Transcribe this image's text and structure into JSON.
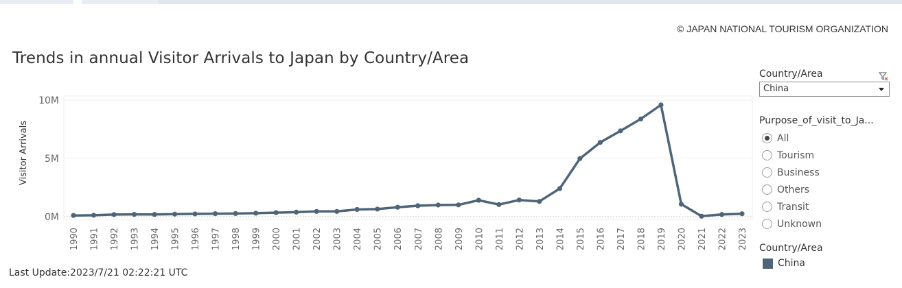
{
  "header": {
    "copyright": "© JAPAN NATIONAL TOURISM ORGANIZATION",
    "title": "Trends in annual Visitor Arrivals to Japan by Country/Area",
    "last_update": "Last Update:2023/7/21 02:22:21 UTC"
  },
  "filters": {
    "country_label": "Country/Area",
    "country_value": "China",
    "purpose_label": "Purpose_of_visit_to_Ja...",
    "purpose_options": [
      "All",
      "Tourism",
      "Business",
      "Others",
      "Transit",
      "Unknown"
    ],
    "purpose_selected": "All"
  },
  "legend": {
    "title": "Country/Area",
    "items": [
      {
        "label": "China",
        "color": "#4e6478"
      }
    ]
  },
  "chart_data": {
    "type": "line",
    "title": "Trends in annual Visitor Arrivals to Japan by Country/Area",
    "ylabel": "Visitor Arrivals",
    "xlabel": "",
    "ylim": [
      0,
      10500000
    ],
    "yticks": [
      0,
      5000000,
      10000000
    ],
    "ytick_labels": [
      "0M",
      "5M",
      "10M"
    ],
    "grid": true,
    "x": [
      "1990",
      "1991",
      "1992",
      "1993",
      "1994",
      "1995",
      "1996",
      "1997",
      "1998",
      "1999",
      "2000",
      "2001",
      "2002",
      "2003",
      "2004",
      "2005",
      "2006",
      "2007",
      "2008",
      "2009",
      "2010",
      "2011",
      "2012",
      "2013",
      "2014",
      "2015",
      "2016",
      "2017",
      "2018",
      "2019",
      "2020",
      "2021",
      "2022",
      "2023"
    ],
    "series": [
      {
        "name": "China",
        "color": "#4e6478",
        "values": [
          105000,
          125000,
          180000,
          200000,
          190000,
          220000,
          240000,
          260000,
          270000,
          300000,
          350000,
          390000,
          450000,
          450000,
          620000,
          650000,
          810000,
          940000,
          1000000,
          1010000,
          1410000,
          1040000,
          1430000,
          1310000,
          2410000,
          4990000,
          6370000,
          7360000,
          8380000,
          9590000,
          1070000,
          42000,
          190000,
          250000
        ]
      }
    ]
  },
  "colors": {
    "line": "#4e6478",
    "grid": "#eeeeee",
    "axis_text": "#666666"
  }
}
